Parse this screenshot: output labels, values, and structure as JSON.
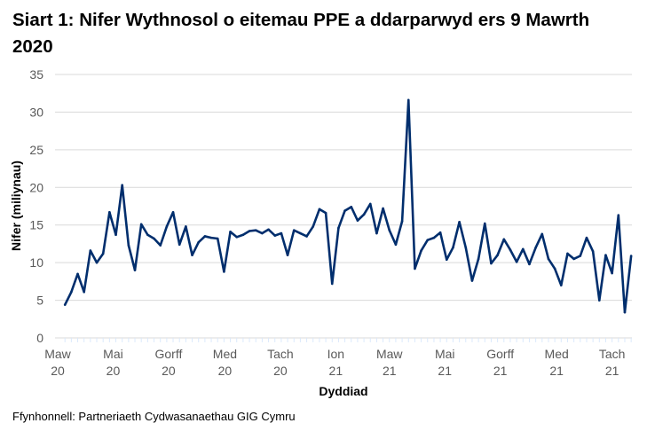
{
  "chart_data": {
    "type": "line",
    "title": "Siart 1: Nifer Wythnosol o eitemau PPE a ddarparwyd ers 9 Mawrth 2020",
    "xlabel": "Dyddiad",
    "ylabel": "Nifer (miliynau)",
    "ylim": [
      0,
      35
    ],
    "yticks": [
      0,
      5,
      10,
      15,
      20,
      25,
      30,
      35
    ],
    "grid": "horizontal",
    "legend": "none",
    "line_color": "#002e6d",
    "x_start": "2020-03-09",
    "x_frequency": "weekly",
    "xticks": [
      {
        "date": "2020-03-01",
        "label": [
          "Maw",
          "20"
        ]
      },
      {
        "date": "2020-05-01",
        "label": [
          "Mai",
          "20"
        ]
      },
      {
        "date": "2020-07-01",
        "label": [
          "Gorff",
          "20"
        ]
      },
      {
        "date": "2020-09-01",
        "label": [
          "Med",
          "20"
        ]
      },
      {
        "date": "2020-11-01",
        "label": [
          "Tach",
          "20"
        ]
      },
      {
        "date": "2021-01-01",
        "label": [
          "Ion",
          "21"
        ]
      },
      {
        "date": "2021-03-01",
        "label": [
          "Maw",
          "21"
        ]
      },
      {
        "date": "2021-05-01",
        "label": [
          "Mai",
          "21"
        ]
      },
      {
        "date": "2021-07-01",
        "label": [
          "Gorff",
          "21"
        ]
      },
      {
        "date": "2021-09-01",
        "label": [
          "Med",
          "21"
        ]
      },
      {
        "date": "2021-11-01",
        "label": [
          "Tach",
          "21"
        ]
      }
    ],
    "values": [
      4.4,
      6.1,
      8.5,
      6.1,
      11.6,
      10.0,
      11.2,
      16.7,
      13.7,
      20.3,
      12.3,
      9.0,
      15.1,
      13.7,
      13.2,
      12.3,
      14.8,
      16.7,
      12.4,
      14.8,
      11.0,
      12.7,
      13.5,
      13.3,
      13.2,
      8.8,
      14.1,
      13.4,
      13.7,
      14.2,
      14.3,
      13.9,
      14.4,
      13.6,
      13.9,
      11.0,
      14.3,
      13.9,
      13.5,
      14.8,
      17.1,
      16.6,
      7.2,
      14.6,
      16.9,
      17.4,
      15.6,
      16.4,
      17.8,
      13.9,
      17.2,
      14.3,
      12.4,
      15.5,
      31.6,
      9.2,
      11.6,
      13.0,
      13.3,
      14.0,
      10.4,
      12.0,
      15.4,
      12.0,
      7.6,
      10.5,
      15.2,
      9.9,
      11.0,
      13.1,
      11.7,
      10.1,
      11.8,
      9.8,
      12.0,
      13.8,
      10.5,
      9.2,
      7.0,
      11.2,
      10.5,
      10.9,
      13.3,
      11.5,
      5.0,
      11.0,
      8.6,
      16.3,
      3.4,
      10.9
    ]
  },
  "source": "Ffynhonnell: Partneriaeth Cydwasanaethau GIG Cymru"
}
